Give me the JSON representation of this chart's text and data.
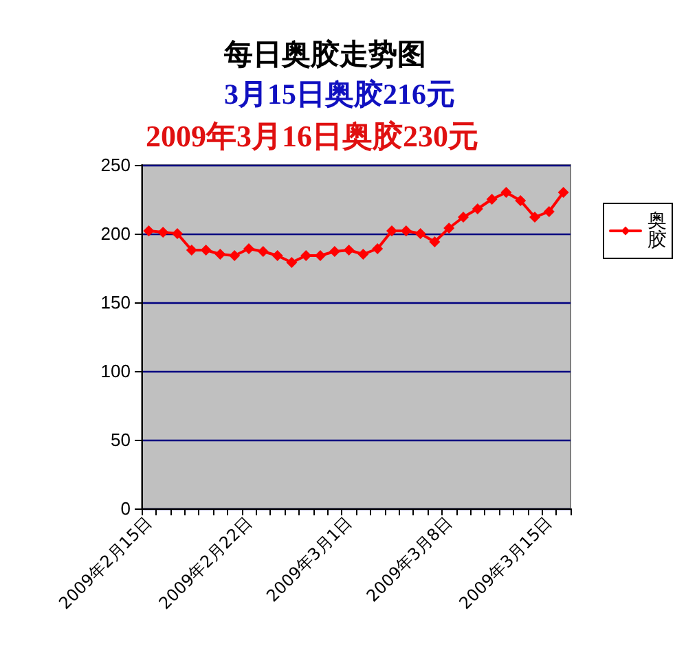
{
  "chart_data": {
    "type": "line",
    "title": "每日奥胶走势图",
    "subtitle": "3月15日奥胶216元",
    "annotations": [
      "2009年3月16日奥胶230元"
    ],
    "categories": [
      "2009年2月15日",
      null,
      null,
      null,
      null,
      null,
      null,
      "2009年2月22日",
      null,
      null,
      null,
      null,
      null,
      null,
      "2009年3月1日",
      null,
      null,
      null,
      null,
      null,
      null,
      "2009年3月8日",
      null,
      null,
      null,
      null,
      null,
      null,
      "2009年3月15日",
      null
    ],
    "series": [
      {
        "name": "奥胶",
        "color": "#ff0000",
        "values": [
          202,
          201,
          200,
          188,
          188,
          185,
          184,
          189,
          187,
          184,
          179,
          184,
          184,
          187,
          188,
          185,
          189,
          202,
          202,
          200,
          194,
          204,
          212,
          218,
          225,
          230,
          224,
          212,
          216,
          230
        ]
      }
    ],
    "ylim": [
      0,
      250
    ],
    "yticks": [
      0,
      50,
      100,
      150,
      200,
      250
    ],
    "grid": "y",
    "legend": "right",
    "marker": "diamond",
    "line_style": "solid"
  }
}
